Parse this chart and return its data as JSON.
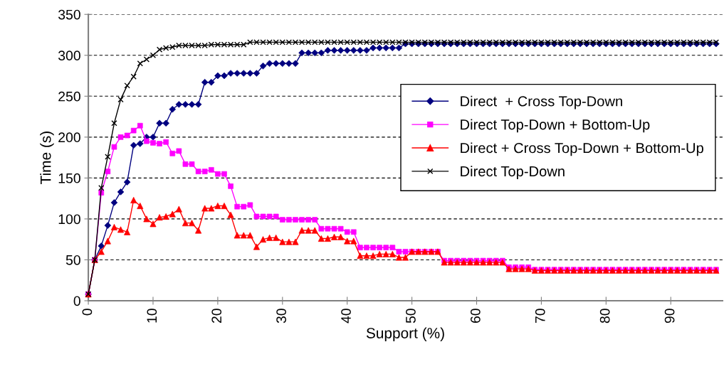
{
  "chart_data": {
    "type": "line",
    "xlabel": "Support (%)",
    "ylabel": "Time (s)",
    "x": [
      0,
      1,
      2,
      3,
      4,
      5,
      6,
      7,
      8,
      9,
      10,
      11,
      12,
      13,
      14,
      15,
      16,
      17,
      18,
      19,
      20,
      21,
      22,
      23,
      24,
      25,
      26,
      27,
      28,
      29,
      30,
      31,
      32,
      33,
      34,
      35,
      36,
      37,
      38,
      39,
      40,
      41,
      42,
      43,
      44,
      45,
      46,
      47,
      48,
      49,
      50,
      51,
      52,
      53,
      54,
      55,
      56,
      57,
      58,
      59,
      60,
      61,
      62,
      63,
      64,
      65,
      66,
      67,
      68,
      69,
      70,
      71,
      72,
      73,
      74,
      75,
      76,
      77,
      78,
      79,
      80,
      81,
      82,
      83,
      84,
      85,
      86,
      87,
      88,
      89,
      90,
      91,
      92,
      93,
      94,
      95,
      96,
      97
    ],
    "series": [
      {
        "name": "Direct  + Cross Top-Down",
        "color": "#000080",
        "marker": "diamond",
        "values": [
          8,
          50,
          67,
          92,
          120,
          133,
          145,
          190,
          192,
          200,
          200,
          217,
          217,
          234,
          240,
          240,
          240,
          240,
          267,
          267,
          275,
          275,
          278,
          278,
          278,
          278,
          278,
          287,
          290,
          290,
          290,
          290,
          290,
          303,
          303,
          303,
          303,
          306,
          306,
          306,
          306,
          306,
          306,
          306,
          309,
          309,
          309,
          309,
          309,
          314,
          314,
          314,
          314,
          314,
          314,
          314,
          314,
          314,
          314,
          314,
          314,
          314,
          314,
          314,
          314,
          314,
          314,
          314,
          314,
          314,
          314,
          314,
          314,
          314,
          314,
          314,
          314,
          314,
          314,
          314,
          314,
          314,
          314,
          314,
          314,
          314,
          314,
          314,
          314,
          314,
          314,
          314,
          314,
          314,
          314,
          314,
          314,
          314
        ]
      },
      {
        "name": "Direct Top-Down + Bottom-Up",
        "color": "#ff00ff",
        "marker": "square",
        "values": [
          8,
          50,
          132,
          158,
          188,
          200,
          202,
          208,
          214,
          195,
          193,
          192,
          194,
          180,
          183,
          167,
          167,
          158,
          158,
          160,
          155,
          155,
          140,
          115,
          115,
          117,
          103,
          103,
          103,
          103,
          99,
          99,
          99,
          99,
          99,
          99,
          88,
          88,
          88,
          88,
          84,
          84,
          65,
          65,
          65,
          65,
          65,
          65,
          60,
          60,
          60,
          60,
          60,
          60,
          60,
          49,
          49,
          49,
          49,
          49,
          49,
          49,
          49,
          49,
          49,
          41,
          41,
          41,
          41,
          38,
          38,
          38,
          38,
          38,
          38,
          38,
          38,
          38,
          38,
          38,
          38,
          38,
          38,
          38,
          38,
          38,
          38,
          38,
          38,
          38,
          38,
          38,
          38,
          38,
          38,
          38,
          38,
          38
        ]
      },
      {
        "name": "Direct + Cross Top-Down + Bottom-Up",
        "color": "#ff0000",
        "marker": "triangle",
        "values": [
          8,
          50,
          60,
          73,
          90,
          87,
          84,
          123,
          116,
          100,
          94,
          102,
          103,
          106,
          112,
          95,
          95,
          86,
          113,
          113,
          116,
          116,
          105,
          80,
          80,
          80,
          66,
          75,
          77,
          77,
          72,
          72,
          72,
          86,
          86,
          86,
          76,
          76,
          78,
          78,
          73,
          73,
          55,
          55,
          55,
          57,
          57,
          57,
          53,
          53,
          60,
          60,
          60,
          60,
          60,
          47,
          47,
          47,
          47,
          47,
          47,
          47,
          47,
          47,
          47,
          39,
          39,
          39,
          39,
          37,
          37,
          37,
          37,
          37,
          37,
          37,
          37,
          37,
          37,
          37,
          37,
          37,
          37,
          37,
          37,
          37,
          37,
          37,
          37,
          37,
          37,
          37,
          37,
          37,
          37,
          37,
          37,
          37
        ]
      },
      {
        "name": "Direct Top-Down",
        "color": "#000000",
        "marker": "cross",
        "values": [
          8,
          50,
          138,
          176,
          217,
          246,
          263,
          274,
          290,
          295,
          300,
          307,
          309,
          310,
          312,
          312,
          312,
          312,
          312,
          313,
          313,
          313,
          313,
          313,
          313,
          316,
          316,
          316,
          316,
          316,
          316,
          316,
          316,
          316,
          316,
          316,
          316,
          316,
          316,
          316,
          316,
          316,
          316,
          316,
          316,
          316,
          316,
          316,
          316,
          316,
          316,
          316,
          316,
          316,
          316,
          316,
          316,
          316,
          316,
          316,
          316,
          316,
          316,
          316,
          316,
          316,
          316,
          316,
          316,
          316,
          316,
          316,
          316,
          316,
          316,
          316,
          316,
          316,
          316,
          316,
          316,
          316,
          316,
          316,
          316,
          316,
          316,
          316,
          316,
          316,
          316,
          316,
          316,
          316,
          316,
          316,
          316,
          316
        ]
      }
    ],
    "xlim": [
      0,
      98
    ],
    "xticks": [
      0,
      10,
      20,
      30,
      40,
      50,
      60,
      70,
      80,
      90
    ],
    "ylim": [
      0,
      350
    ],
    "yticks": [
      0,
      50,
      100,
      150,
      200,
      250,
      300,
      350
    ],
    "grid": "y",
    "legend": "right",
    "line_style": "solid"
  }
}
